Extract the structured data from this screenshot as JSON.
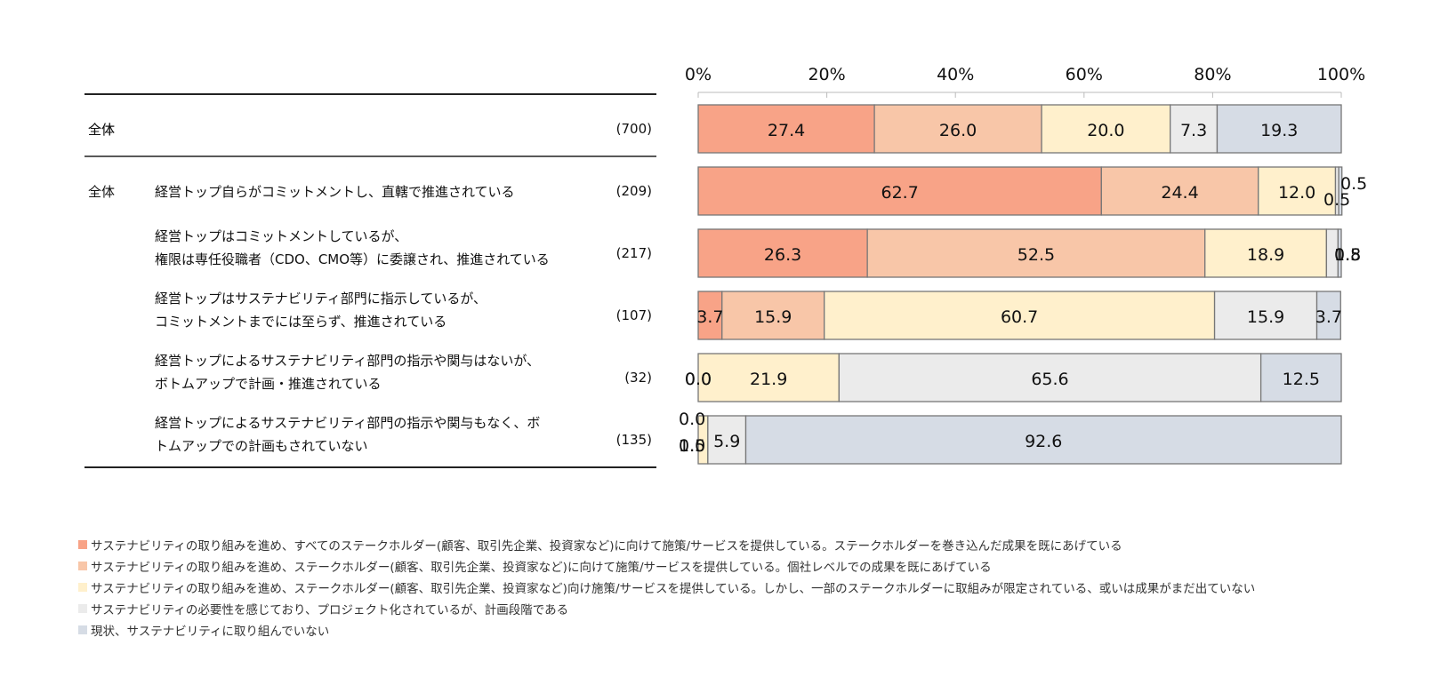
{
  "chart_data": {
    "type": "bar",
    "stacked": "percent",
    "orientation": "horizontal",
    "xlim": [
      0,
      100
    ],
    "xticks": [
      "0%",
      "20%",
      "40%",
      "60%",
      "80%",
      "100%"
    ],
    "rows": [
      {
        "group": "全体",
        "label": [
          "全体"
        ],
        "n": "(700)",
        "values": [
          "27.4",
          "26.0",
          "20.0",
          "7.3",
          "19.3"
        ]
      },
      {
        "group": "全体",
        "label": [
          "経営トップ自らがコミットメントし、直轄で推進されている"
        ],
        "n": "(209)",
        "values": [
          "62.7",
          "24.4",
          "12.0",
          "0.5",
          "0.5"
        ]
      },
      {
        "group": "",
        "label": [
          "経営トップはコミットメントしているが、",
          "権限は専任役職者（CDO、CMO等）に委譲され、推進されている"
        ],
        "n": "(217)",
        "values": [
          "26.3",
          "52.5",
          "18.9",
          "1.8",
          "0.5"
        ]
      },
      {
        "group": "",
        "label": [
          "経営トップはサステナビリティ部門に指示しているが、",
          "コミットメントまでには至らず、推進されている"
        ],
        "n": "(107)",
        "values": [
          "3.7",
          "15.9",
          "60.7",
          "15.9",
          "3.7"
        ]
      },
      {
        "group": "",
        "label": [
          "経営トップによるサステナビリティ部門の指示や関与はないが、",
          "ボトムアップで計画・推進されている"
        ],
        "n": "(32)",
        "values": [
          "0.0",
          "0.0",
          "21.9",
          "65.6",
          "12.5"
        ]
      },
      {
        "group": "",
        "label": [
          "経営トップによるサステナビリティ部門の指示や関与もなく、ボ",
          "トムアップでの計画もされていない"
        ],
        "n": "(135)",
        "values": [
          "0.0",
          "0.0",
          "1.5",
          "5.9",
          "92.6"
        ]
      }
    ],
    "series": [
      {
        "name": "サステナビリティの取り組みを進め、すべてのステークホルダー(顧客、取引先企業、投資家など)に向けて施策/サービスを提供している。ステークホルダーを巻き込んだ成果を既にあげている",
        "color": "#F8A387"
      },
      {
        "name": "サステナビリティの取り組みを進め、ステークホルダー(顧客、取引先企業、投資家など)に向けて施策/サービスを提供している。個社レベルでの成果を既にあげている",
        "color": "#F8C6A8"
      },
      {
        "name": "サステナビリティの取り組みを進め、ステークホルダー(顧客、取引先企業、投資家など)向け施策/サービスを提供している。しかし、一部のステークホルダーに取組みが限定されている、或いは成果がまだ出ていない",
        "color": "#FFF0CC"
      },
      {
        "name": "サステナビリティの必要性を感じており、プロジェクト化されているが、計画段階である",
        "color": "#EBEBEB"
      },
      {
        "name": "現状、サステナビリティに取り組んでいない",
        "color": "#D6DCE5"
      }
    ],
    "legend_position": "bottom-left",
    "grid": false
  }
}
